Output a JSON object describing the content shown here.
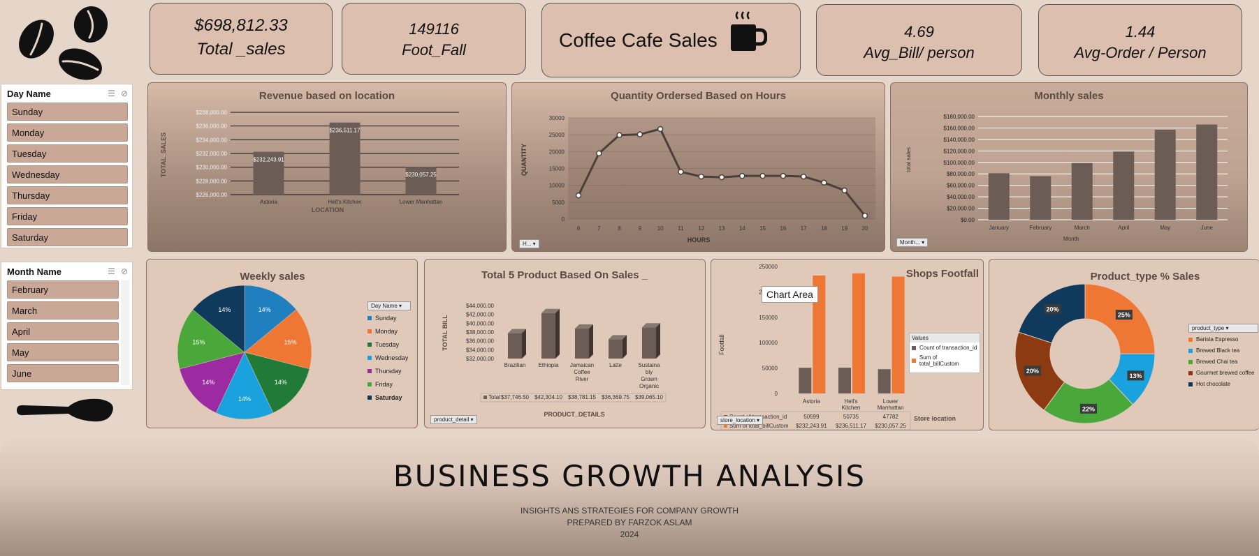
{
  "kpis": {
    "total_sales_value": "$698,812.33",
    "total_sales_label": "Total _sales",
    "footfall_value": "149116",
    "footfall_label": "Foot_Fall",
    "title": "Coffee Cafe Sales",
    "avg_bill_value": "4.69",
    "avg_bill_label": "Avg_Bill/ person",
    "avg_order_value": "1.44",
    "avg_order_label": "Avg-Order / Person"
  },
  "day_slicer": {
    "title": "Day Name",
    "items": [
      "Sunday",
      "Monday",
      "Tuesday",
      "Wednesday",
      "Thursday",
      "Friday",
      "Saturday"
    ]
  },
  "month_slicer": {
    "title": "Month Name",
    "items": [
      "February",
      "March",
      "April",
      "May",
      "June"
    ]
  },
  "footer": {
    "title": "BUSINESS  GROWTH  ANALYSIS",
    "line1": "INSIGHTS  ANS STRATEGIES FOR COMPANY GROWTH",
    "line2": "PREPARED BY FARZOK ASLAM",
    "line3": "2024"
  },
  "colors": {
    "bar": "#6b5d55",
    "orange": "#ee7733",
    "blue": "#1f7fbf",
    "green": "#4aa83a",
    "dkgreen": "#217a37",
    "purple": "#9c2aa0",
    "cyan": "#19a2dd",
    "navy": "#0f3a5c",
    "brown": "#8b3a12"
  },
  "chart_data": [
    {
      "id": "location",
      "type": "bar",
      "title": "Revenue based on location",
      "xlabel": "LOCATION",
      "ylabel": "TOTAL_SALES",
      "categories": [
        "Astoria",
        "Hell's Kitchen",
        "Lower Manhattan"
      ],
      "values": [
        232243.91,
        236511.17,
        230057.25
      ],
      "value_labels": [
        "$232,243.91",
        "$236,511.17",
        "$230,057.25"
      ],
      "ylim": [
        226000,
        238000
      ],
      "yticks": [
        "$226,000.00",
        "$228,000.00",
        "$230,000.00",
        "$232,000.00",
        "$234,000.00",
        "$236,000.00",
        "$238,000.00"
      ]
    },
    {
      "id": "hours",
      "type": "line",
      "title": "Quantity Ordersed Based on Hours",
      "xlabel": "HOURS",
      "ylabel": "QUANTITY",
      "x": [
        6,
        7,
        8,
        9,
        10,
        11,
        12,
        13,
        14,
        15,
        16,
        17,
        18,
        19,
        20
      ],
      "values": [
        7000,
        19500,
        24900,
        25100,
        26700,
        14000,
        12600,
        12400,
        12800,
        12800,
        12800,
        12600,
        10800,
        8500,
        1000
      ],
      "ylim": [
        0,
        30000
      ],
      "yticks": [
        "0",
        "5000",
        "10000",
        "15000",
        "20000",
        "25000",
        "30000"
      ],
      "filter": "H..."
    },
    {
      "id": "monthly",
      "type": "bar",
      "title": "Monthly sales",
      "xlabel": "Month",
      "ylabel": "total sales",
      "categories": [
        "January",
        "February",
        "March",
        "April",
        "May",
        "June"
      ],
      "values": [
        81000,
        76000,
        99000,
        119000,
        157000,
        166000
      ],
      "ylim": [
        0,
        180000
      ],
      "yticks": [
        "$0.00",
        "$20,000.00",
        "$40,000.00",
        "$60,000.00",
        "$80,000.00",
        "$100,000.00",
        "$120,000.00",
        "$140,000.00",
        "$160,000.00",
        "$180,000.00"
      ],
      "filter": "Month..."
    },
    {
      "id": "weekly",
      "type": "pie",
      "title": "Weekly sales",
      "legend_title": "Day Name",
      "categories": [
        "Sunday",
        "Monday",
        "Tuesday",
        "Wednesday",
        "Thursday",
        "Friday",
        "Saturday"
      ],
      "values": [
        14,
        15,
        14,
        14,
        14,
        15,
        14
      ],
      "labels": [
        "14%",
        "15%",
        "14%",
        "14%",
        "14%",
        "15%",
        "14%"
      ]
    },
    {
      "id": "products",
      "type": "bar",
      "title": "Total 5 Product Based On Sales _",
      "xlabel": "PRODUCT_DETAILS",
      "ylabel": "TOTAL BILL",
      "categories": [
        "Brazilian",
        "Ethiopia",
        "Jamaican Coffee River",
        "Latte",
        "Sustainably Grown Organic"
      ],
      "category_lines": [
        [
          "Brazilian"
        ],
        [
          "Ethiopia"
        ],
        [
          "Jamaican",
          "Coffee",
          "River"
        ],
        [
          "Latte"
        ],
        [
          "Sustaina",
          "bly",
          "Grown",
          "Organic"
        ]
      ],
      "values": [
        37746.5,
        42304.1,
        38781.15,
        36369.75,
        39065.1
      ],
      "table_row": [
        "$37,746.50",
        "$42,304.10",
        "$38,781.15",
        "$36,369.75",
        "$39,065.10"
      ],
      "table_label": "Total",
      "ylim": [
        32000,
        44000
      ],
      "yticks": [
        "$32,000.00",
        "$34,000.00",
        "$36,000.00",
        "$38,000.00",
        "$40,000.00",
        "$42,000.00",
        "$44,000.00"
      ],
      "filter": "product_detail"
    },
    {
      "id": "footfall",
      "type": "bar",
      "title": "Shops Footfall",
      "xlabel": "Store location",
      "ylabel": "Footfall",
      "categories": [
        "Astoria",
        "Hell's Kitchen",
        "Lower Manhattan"
      ],
      "category_lines": [
        [
          "Astoria"
        ],
        [
          "Hell's",
          "Kitchen"
        ],
        [
          "Lower",
          "Manhattan"
        ]
      ],
      "series": [
        {
          "name": "Count of transaction_id",
          "values": [
            50599,
            50735,
            47782
          ],
          "labels": [
            "50599",
            "50735",
            "47782"
          ]
        },
        {
          "name": "Sum of total_billCustom",
          "values": [
            232243.91,
            236511.17,
            230057.25
          ],
          "labels": [
            "$232,243.91",
            "$236,511.17",
            "$230,057.25"
          ]
        }
      ],
      "ylim": [
        0,
        250000
      ],
      "yticks": [
        "0",
        "50000",
        "100000",
        "150000",
        "200000",
        "250000"
      ],
      "legend_title": "Values",
      "tooltip": "Chart Area",
      "filter": "store_location"
    },
    {
      "id": "product_type",
      "type": "pie",
      "title": "Product_type % Sales",
      "legend_title": "product_type",
      "categories": [
        "Barista Espresso",
        "Brewed Black tea",
        "Brewed Chai tea",
        "Gourmet brewed coffee",
        "Hot chocolate"
      ],
      "values": [
        25,
        13,
        22,
        20,
        20
      ],
      "labels": [
        "25%",
        "13%",
        "22%",
        "20%",
        "20%"
      ]
    }
  ]
}
